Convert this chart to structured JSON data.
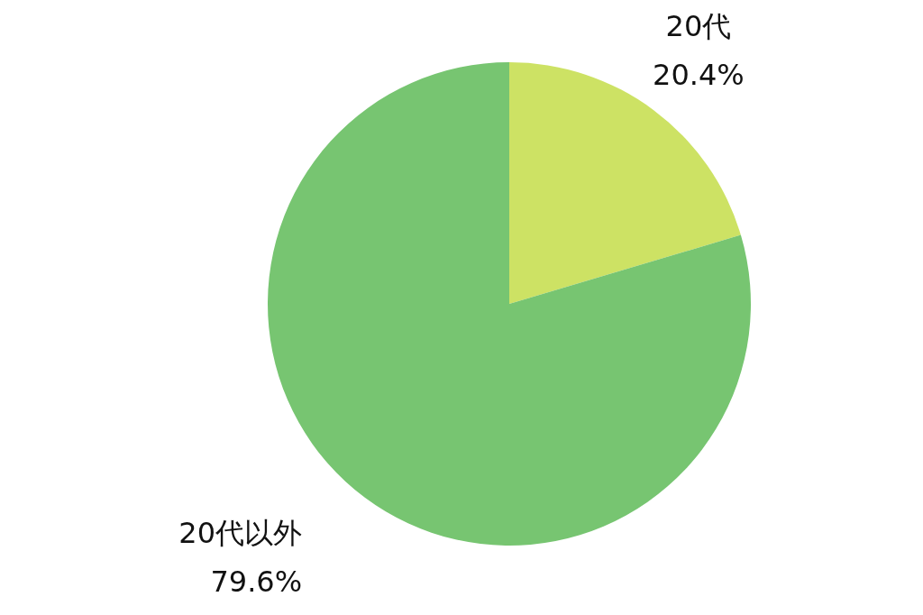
{
  "chart_data": {
    "type": "pie",
    "categories": [
      "20代",
      "20代以外"
    ],
    "values": [
      20.4,
      79.6
    ],
    "colors": [
      "#cde264",
      "#77c571"
    ],
    "value_labels": [
      "20.4%",
      "79.6%"
    ]
  }
}
